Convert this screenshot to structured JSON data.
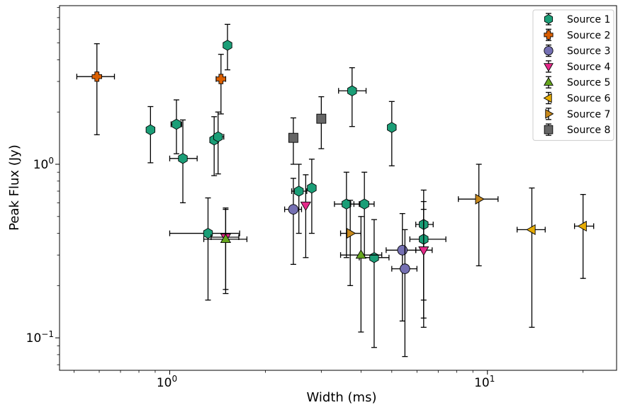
{
  "chart_data": {
    "type": "scatter",
    "xlabel": "Width (ms)",
    "ylabel": "Peak Flux (Jy)",
    "xscale": "log",
    "yscale": "log",
    "xlim": [
      0.45,
      25.5
    ],
    "ylim": [
      0.065,
      8.2
    ],
    "x_ticks": [
      {
        "value": 1,
        "label": "10^0"
      },
      {
        "value": 10,
        "label": "10^1"
      }
    ],
    "y_ticks": [
      {
        "value": 0.1,
        "label": "10^-1"
      },
      {
        "value": 1,
        "label": "10^0"
      }
    ],
    "tick_labels": {
      "x": [
        {
          "base": "10",
          "exp": "0"
        },
        {
          "base": "10",
          "exp": "1"
        }
      ],
      "y": [
        {
          "base": "10",
          "exp": "−1"
        },
        {
          "base": "10",
          "exp": "0"
        }
      ]
    },
    "legend_position": "top-right",
    "grid": false,
    "series": [
      {
        "name": "Source 1",
        "marker": "hexagon",
        "color": "#1b9e77",
        "points": [
          {
            "x": 0.87,
            "y": 1.58,
            "xerr": [
              0.03,
              0.03
            ],
            "yerr": [
              1.02,
              2.15
            ]
          },
          {
            "x": 1.05,
            "y": 1.7,
            "xerr": [
              1.01,
              1.09
            ],
            "yerr": [
              1.15,
              2.35
            ]
          },
          {
            "x": 1.1,
            "y": 1.08,
            "xerr": [
              1.0,
              1.22
            ],
            "yerr": [
              0.6,
              1.8
            ]
          },
          {
            "x": 1.38,
            "y": 1.38,
            "xerr": [
              1.34,
              1.42
            ],
            "yerr": [
              0.86,
              1.88
            ]
          },
          {
            "x": 1.42,
            "y": 1.44,
            "xerr": [
              1.38,
              1.48
            ],
            "yerr": [
              0.88,
              2.0
            ]
          },
          {
            "x": 1.52,
            "y": 4.85,
            "xerr": [
              1.52,
              1.52
            ],
            "yerr": [
              3.5,
              6.4
            ]
          },
          {
            "x": 1.32,
            "y": 0.4,
            "xerr": [
              1.0,
              1.66
            ],
            "yerr": [
              0.165,
              0.64
            ]
          },
          {
            "x": 2.55,
            "y": 0.7,
            "xerr": [
              2.42,
              2.7
            ],
            "yerr": [
              0.4,
              1.0
            ]
          },
          {
            "x": 2.8,
            "y": 0.73,
            "xerr": [
              2.8,
              2.8
            ],
            "yerr": [
              0.4,
              1.07
            ]
          },
          {
            "x": 3.6,
            "y": 0.59,
            "xerr": [
              3.3,
              3.95
            ],
            "yerr": [
              0.29,
              0.9
            ]
          },
          {
            "x": 4.1,
            "y": 0.59,
            "xerr": [
              3.8,
              4.4
            ],
            "yerr": [
              0.29,
              0.9
            ]
          },
          {
            "x": 3.75,
            "y": 2.65,
            "xerr": [
              3.4,
              4.15
            ],
            "yerr": [
              1.65,
              3.6
            ]
          },
          {
            "x": 4.4,
            "y": 0.29,
            "xerr": [
              3.95,
              4.9
            ],
            "yerr": [
              0.088,
              0.48
            ]
          },
          {
            "x": 5.0,
            "y": 1.63,
            "xerr": [
              5.0,
              5.0
            ],
            "yerr": [
              0.98,
              2.3
            ]
          },
          {
            "x": 6.3,
            "y": 0.45,
            "xerr": [
              5.95,
              6.75
            ],
            "yerr": [
              0.165,
              0.71
            ]
          },
          {
            "x": 6.3,
            "y": 0.37,
            "xerr": [
              5.7,
              7.4
            ],
            "yerr": [
              0.13,
              0.61
            ]
          }
        ]
      },
      {
        "name": "Source 2",
        "marker": "x-filled",
        "color": "#d95f02",
        "points": [
          {
            "x": 0.59,
            "y": 3.2,
            "xerr": [
              0.51,
              0.67
            ],
            "yerr": [
              1.48,
              4.95
            ]
          },
          {
            "x": 1.45,
            "y": 3.1,
            "xerr": [
              1.4,
              1.5
            ],
            "yerr": [
              1.95,
              4.3
            ]
          }
        ]
      },
      {
        "name": "Source 3",
        "marker": "circle",
        "color": "#7570b3",
        "points": [
          {
            "x": 2.45,
            "y": 0.55,
            "xerr": [
              2.3,
              2.6
            ],
            "yerr": [
              0.265,
              0.83
            ]
          },
          {
            "x": 5.4,
            "y": 0.32,
            "xerr": [
              4.8,
              5.95
            ],
            "yerr": [
              0.125,
              0.52
            ]
          },
          {
            "x": 5.5,
            "y": 0.25,
            "xerr": [
              5.0,
              6.0
            ],
            "yerr": [
              0.078,
              0.42
            ]
          }
        ]
      },
      {
        "name": "Source 4",
        "marker": "triangle-down",
        "color": "#e7298a",
        "points": [
          {
            "x": 1.5,
            "y": 0.38,
            "xerr": [
              1.35,
              1.65
            ],
            "yerr": [
              0.19,
              0.56
            ]
          },
          {
            "x": 2.68,
            "y": 0.58,
            "xerr": [
              2.68,
              2.68
            ],
            "yerr": [
              0.29,
              0.87
            ]
          },
          {
            "x": 6.3,
            "y": 0.32,
            "xerr": [
              5.95,
              6.7
            ],
            "yerr": [
              0.115,
              0.55
            ]
          }
        ]
      },
      {
        "name": "Source 5",
        "marker": "triangle-up",
        "color": "#66a61e",
        "points": [
          {
            "x": 1.5,
            "y": 0.37,
            "xerr": [
              1.28,
              1.75
            ],
            "yerr": [
              0.18,
              0.55
            ]
          },
          {
            "x": 4.0,
            "y": 0.3,
            "xerr": [
              3.45,
              4.65
            ],
            "yerr": [
              0.108,
              0.5
            ]
          }
        ]
      },
      {
        "name": "Source 6",
        "marker": "triangle-left",
        "color": "#e6ab02",
        "points": [
          {
            "x": 13.8,
            "y": 0.42,
            "xerr": [
              12.4,
              15.2
            ],
            "yerr": [
              0.115,
              0.73
            ]
          },
          {
            "x": 20.0,
            "y": 0.44,
            "xerr": [
              18.8,
              21.6
            ],
            "yerr": [
              0.22,
              0.67
            ]
          }
        ]
      },
      {
        "name": "Source 7",
        "marker": "triangle-right",
        "color": "#c8891b",
        "points": [
          {
            "x": 3.7,
            "y": 0.4,
            "xerr": [
              3.45,
              4.0
            ],
            "yerr": [
              0.2,
              0.62
            ]
          },
          {
            "x": 9.4,
            "y": 0.63,
            "xerr": [
              8.1,
              10.8
            ],
            "yerr": [
              0.26,
              1.0
            ]
          }
        ]
      },
      {
        "name": "Source 8",
        "marker": "square",
        "color": "#666666",
        "points": [
          {
            "x": 2.45,
            "y": 1.42,
            "xerr": [
              2.45,
              2.45
            ],
            "yerr": [
              1.0,
              1.85
            ]
          },
          {
            "x": 3.0,
            "y": 1.83,
            "xerr": [
              3.0,
              3.0
            ],
            "yerr": [
              1.23,
              2.45
            ]
          }
        ]
      }
    ]
  }
}
